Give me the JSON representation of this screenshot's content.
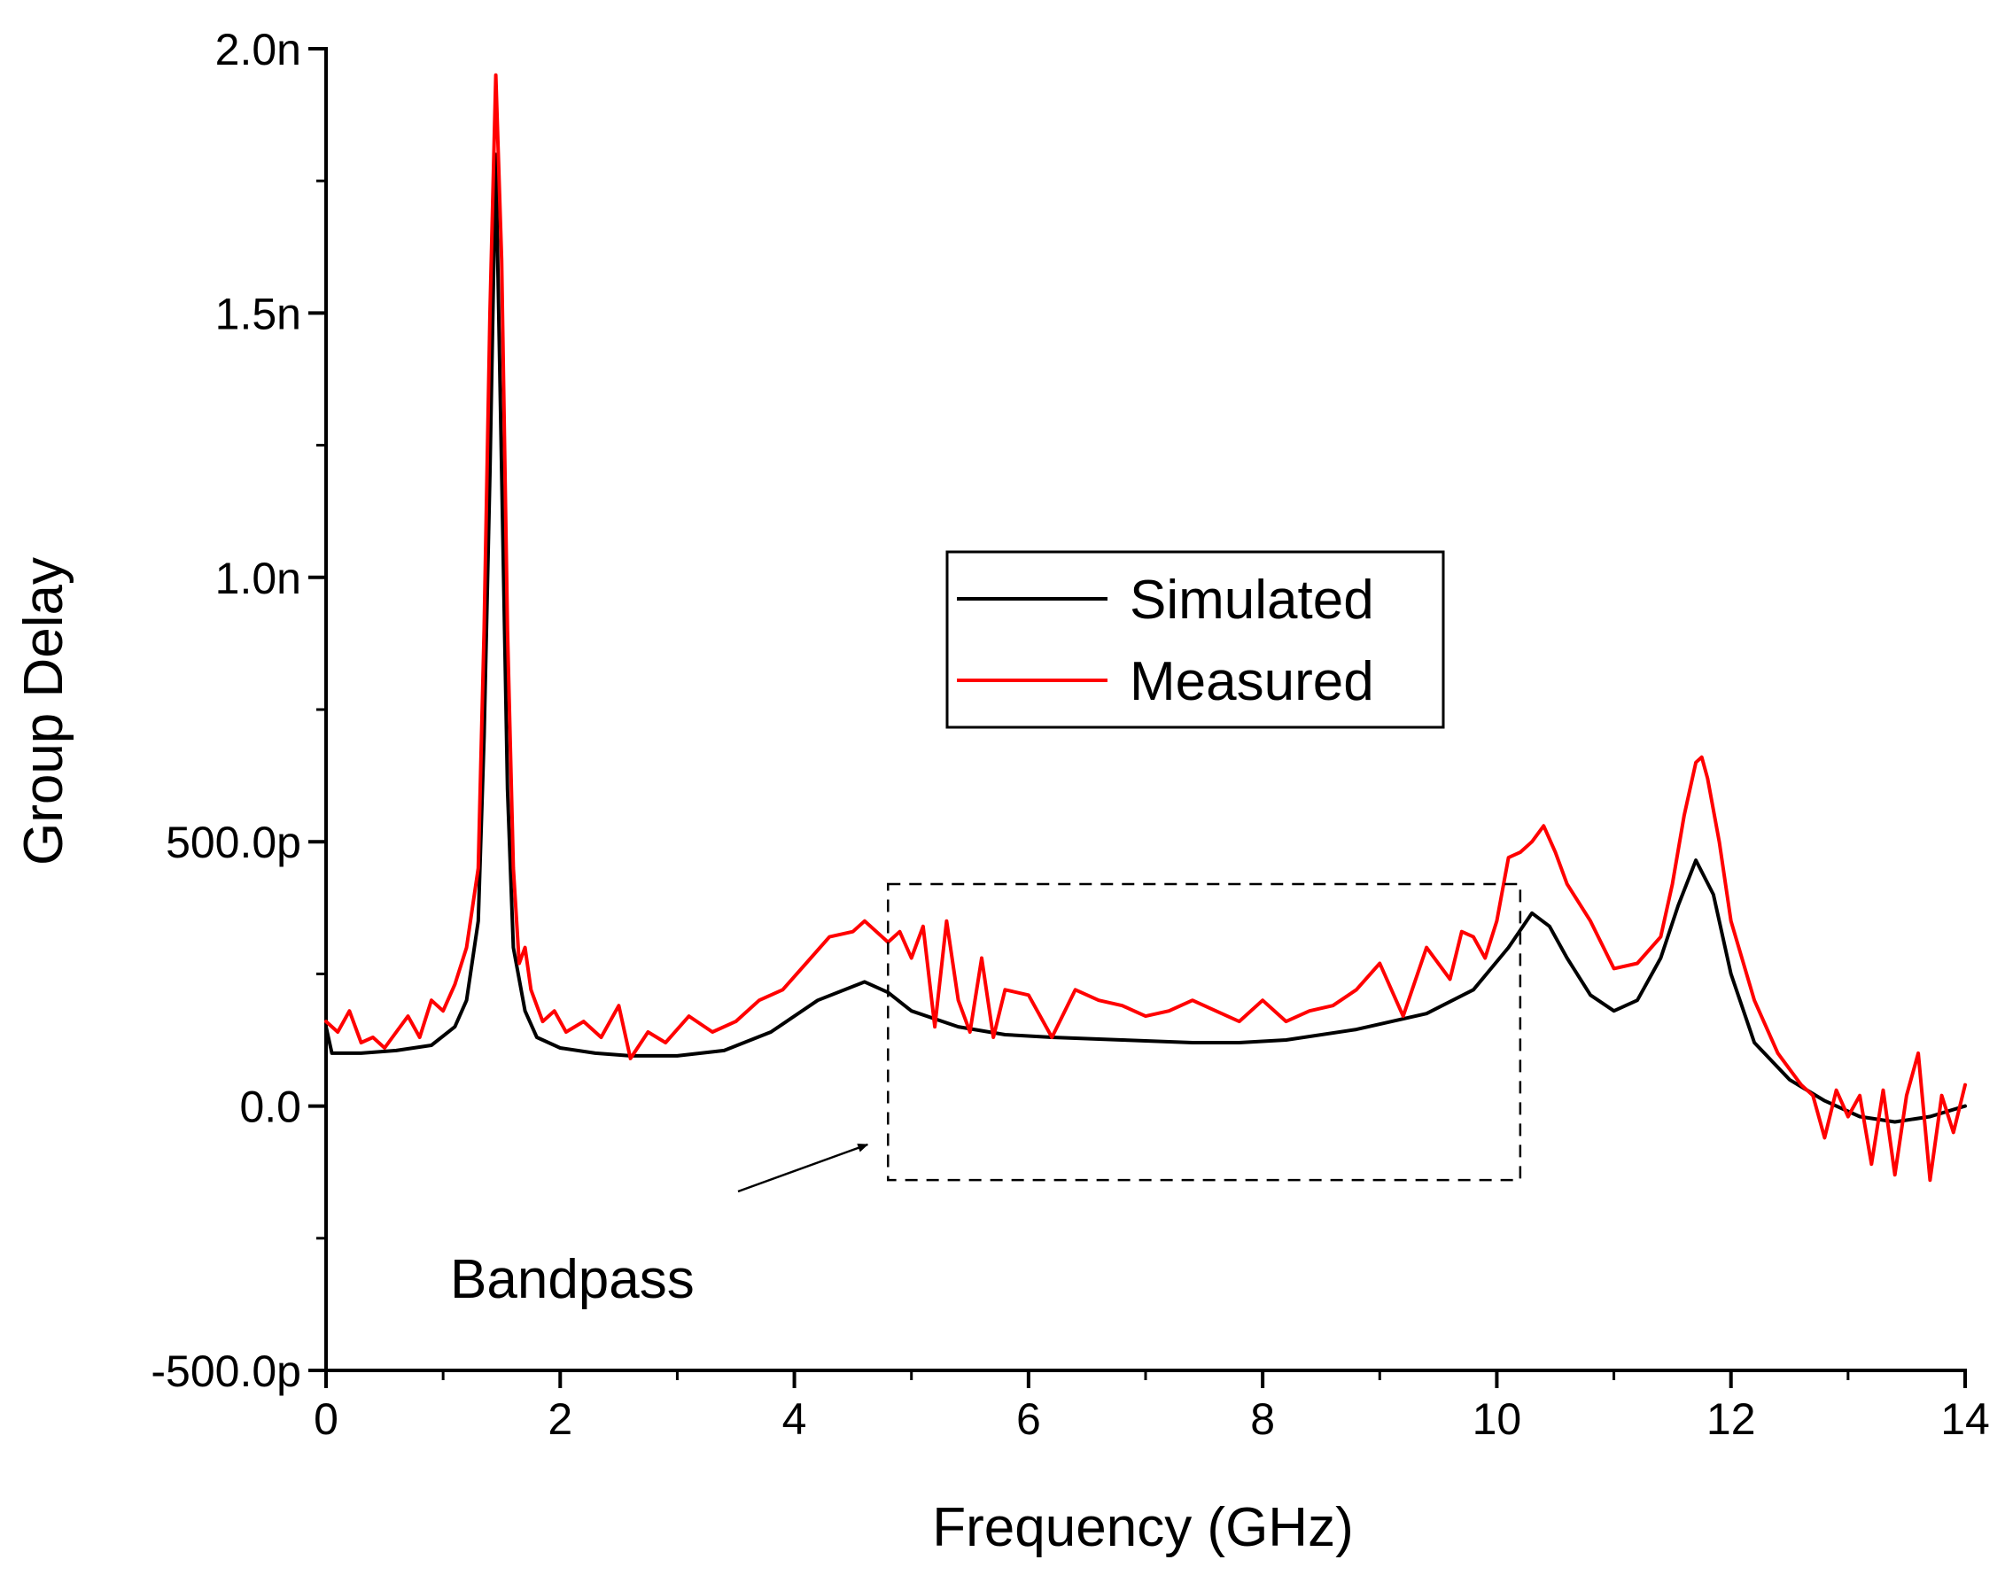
{
  "chart_data": {
    "type": "line",
    "title": "",
    "xlabel": "Frequency (GHz)",
    "ylabel": "Group Delay",
    "xlim": [
      0,
      14
    ],
    "ylim": [
      -0.5,
      2.0
    ],
    "x_ticks": [
      0,
      2,
      4,
      6,
      8,
      10,
      12,
      14
    ],
    "x_tick_labels": [
      "0",
      "2",
      "4",
      "6",
      "8",
      "10",
      "12",
      "14"
    ],
    "y_ticks": [
      -0.5,
      0.0,
      0.5,
      1.0,
      1.5,
      2.0
    ],
    "y_tick_labels": [
      "-500.0p",
      "0.0",
      "500.0p",
      "1.0n",
      "1.5n",
      "2.0n"
    ],
    "y_unit_note": "values in ns",
    "grid": false,
    "legend_position": "center-right",
    "series": [
      {
        "name": "Simulated",
        "color": "#000000",
        "x": [
          0,
          0.05,
          0.3,
          0.6,
          0.9,
          1.1,
          1.2,
          1.3,
          1.35,
          1.4,
          1.45,
          1.5,
          1.55,
          1.6,
          1.7,
          1.8,
          2.0,
          2.3,
          2.6,
          3.0,
          3.4,
          3.8,
          4.2,
          4.6,
          4.8,
          5.0,
          5.4,
          5.8,
          6.2,
          6.8,
          7.4,
          7.8,
          8.2,
          8.8,
          9.4,
          9.8,
          10.1,
          10.3,
          10.45,
          10.6,
          10.8,
          11.0,
          11.2,
          11.4,
          11.55,
          11.7,
          11.85,
          12.0,
          12.2,
          12.5,
          12.8,
          13.1,
          13.4,
          13.7,
          14.0
        ],
        "y": [
          0.15,
          0.1,
          0.1,
          0.105,
          0.115,
          0.15,
          0.2,
          0.35,
          0.7,
          1.2,
          1.8,
          1.2,
          0.6,
          0.3,
          0.18,
          0.13,
          0.11,
          0.1,
          0.095,
          0.095,
          0.105,
          0.14,
          0.2,
          0.235,
          0.215,
          0.18,
          0.15,
          0.135,
          0.13,
          0.125,
          0.12,
          0.12,
          0.125,
          0.145,
          0.175,
          0.22,
          0.3,
          0.365,
          0.34,
          0.28,
          0.21,
          0.18,
          0.2,
          0.28,
          0.38,
          0.465,
          0.4,
          0.25,
          0.12,
          0.05,
          0.01,
          -0.02,
          -0.03,
          -0.02,
          0.0
        ]
      },
      {
        "name": "Measured",
        "color": "#ff0000",
        "x": [
          0,
          0.1,
          0.2,
          0.3,
          0.4,
          0.5,
          0.6,
          0.7,
          0.8,
          0.9,
          1.0,
          1.1,
          1.2,
          1.3,
          1.35,
          1.4,
          1.45,
          1.5,
          1.55,
          1.6,
          1.65,
          1.7,
          1.75,
          1.85,
          1.95,
          2.05,
          2.2,
          2.35,
          2.5,
          2.6,
          2.75,
          2.9,
          3.1,
          3.3,
          3.5,
          3.7,
          3.9,
          4.1,
          4.3,
          4.5,
          4.6,
          4.8,
          4.9,
          5.0,
          5.1,
          5.2,
          5.3,
          5.4,
          5.5,
          5.6,
          5.7,
          5.8,
          6.0,
          6.2,
          6.4,
          6.6,
          6.8,
          7.0,
          7.2,
          7.4,
          7.6,
          7.8,
          8.0,
          8.2,
          8.4,
          8.6,
          8.8,
          9.0,
          9.2,
          9.4,
          9.6,
          9.7,
          9.8,
          9.9,
          10.0,
          10.1,
          10.2,
          10.3,
          10.4,
          10.5,
          10.6,
          10.8,
          11.0,
          11.2,
          11.4,
          11.5,
          11.6,
          11.7,
          11.75,
          11.8,
          11.9,
          12.0,
          12.2,
          12.4,
          12.6,
          12.7,
          12.8,
          12.9,
          13.0,
          13.1,
          13.2,
          13.3,
          13.4,
          13.5,
          13.6,
          13.7,
          13.8,
          13.9,
          14.0
        ],
        "y": [
          0.16,
          0.14,
          0.18,
          0.12,
          0.13,
          0.11,
          0.14,
          0.17,
          0.13,
          0.2,
          0.18,
          0.23,
          0.3,
          0.45,
          0.9,
          1.5,
          1.95,
          1.6,
          0.9,
          0.45,
          0.27,
          0.3,
          0.22,
          0.16,
          0.18,
          0.14,
          0.16,
          0.13,
          0.19,
          0.09,
          0.14,
          0.12,
          0.17,
          0.14,
          0.16,
          0.2,
          0.22,
          0.27,
          0.32,
          0.33,
          0.35,
          0.31,
          0.33,
          0.28,
          0.34,
          0.15,
          0.35,
          0.2,
          0.14,
          0.28,
          0.13,
          0.22,
          0.21,
          0.13,
          0.22,
          0.2,
          0.19,
          0.17,
          0.18,
          0.2,
          0.18,
          0.16,
          0.2,
          0.16,
          0.18,
          0.19,
          0.22,
          0.27,
          0.17,
          0.3,
          0.24,
          0.33,
          0.32,
          0.28,
          0.35,
          0.47,
          0.48,
          0.5,
          0.53,
          0.48,
          0.42,
          0.35,
          0.26,
          0.27,
          0.32,
          0.42,
          0.55,
          0.65,
          0.66,
          0.62,
          0.5,
          0.35,
          0.2,
          0.1,
          0.04,
          0.02,
          -0.06,
          0.03,
          -0.02,
          0.02,
          -0.11,
          0.03,
          -0.13,
          0.02,
          0.1,
          -0.14,
          0.02,
          -0.05,
          0.04
        ]
      }
    ],
    "annotations": [
      {
        "text": "Bandpass",
        "region_x": [
          4.8,
          10.2
        ],
        "region_y": [
          -0.14,
          0.42
        ],
        "style": "dashed box with arrow"
      }
    ]
  }
}
